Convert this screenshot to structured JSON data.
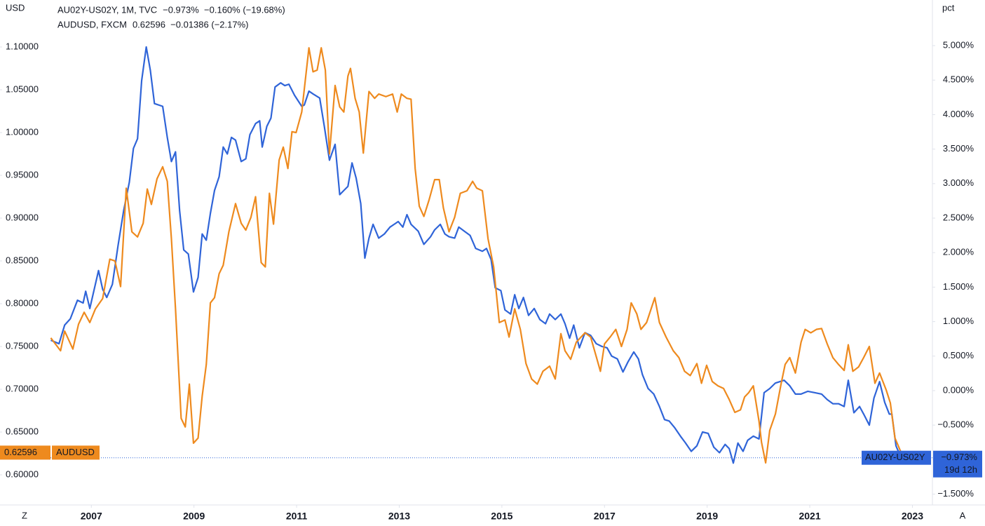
{
  "chart_data": {
    "type": "line",
    "y_label": "USD",
    "y2_label": "pct",
    "legend": [
      {
        "label": "AU02Y-US02Y, 1M, TVC",
        "stats": "−0.973%  −0.160% (−19.68%)"
      },
      {
        "label": "AUDUSD, FXCM",
        "stats": "0.62596  −0.01386 (−2.17%)"
      }
    ],
    "xlim": [
      2005.22,
      2023.39
    ],
    "xticks": [
      2007,
      2009,
      2011,
      2013,
      2015,
      2017,
      2019,
      2021,
      2023
    ],
    "ylim": [
      0.5648,
      1.1549
    ],
    "yticks": [
      {
        "value": 0.6,
        "label": "0.60000"
      },
      {
        "value": 0.65,
        "label": "0.65000"
      },
      {
        "value": 0.7,
        "label": "0.70000"
      },
      {
        "value": 0.75,
        "label": "0.75000"
      },
      {
        "value": 0.8,
        "label": "0.80000"
      },
      {
        "value": 0.85,
        "label": "0.85000"
      },
      {
        "value": 0.9,
        "label": "0.90000"
      },
      {
        "value": 0.95,
        "label": "0.95000"
      },
      {
        "value": 1.0,
        "label": "1.00000"
      },
      {
        "value": 1.05,
        "label": "1.05000"
      },
      {
        "value": 1.1,
        "label": "1.10000"
      }
    ],
    "y2lim": [
      -1.657,
      5.661
    ],
    "y2ticks": [
      {
        "value": -1.5,
        "label": "−1.500%"
      },
      {
        "value": -1.0,
        "label": "−1.000%"
      },
      {
        "value": -0.5,
        "label": "−0.500%"
      },
      {
        "value": 0,
        "label": "0.000%"
      },
      {
        "value": 0.5,
        "label": "0.500%"
      },
      {
        "value": 1.0,
        "label": "1.000%"
      },
      {
        "value": 1.5,
        "label": "1.500%"
      },
      {
        "value": 2.0,
        "label": "2.000%"
      },
      {
        "value": 2.5,
        "label": "2.500%"
      },
      {
        "value": 3.0,
        "label": "3.000%"
      },
      {
        "value": 3.5,
        "label": "3.500%"
      },
      {
        "value": 4.0,
        "label": "4.000%"
      },
      {
        "value": 4.5,
        "label": "4.500%"
      },
      {
        "value": 5.0,
        "label": "5.000%"
      }
    ],
    "grid": false,
    "series": [
      {
        "name": "AU02Y-US02Y",
        "color": "#2f64d8",
        "axis": "y2",
        "x": [
          2006.21,
          2006.37,
          2006.48,
          2006.59,
          2006.73,
          2006.84,
          2006.89,
          2006.97,
          2007.14,
          2007.22,
          2007.3,
          2007.41,
          2007.52,
          2007.63,
          2007.74,
          2007.82,
          2007.9,
          2007.98,
          2008.07,
          2008.15,
          2008.23,
          2008.39,
          2008.48,
          2008.56,
          2008.64,
          2008.72,
          2008.8,
          2008.89,
          2008.99,
          2009.08,
          2009.16,
          2009.24,
          2009.32,
          2009.4,
          2009.49,
          2009.57,
          2009.65,
          2009.73,
          2009.81,
          2009.92,
          2010.01,
          2010.09,
          2010.2,
          2010.28,
          2010.33,
          2010.42,
          2010.5,
          2010.58,
          2010.69,
          2010.77,
          2010.85,
          2010.96,
          2011.1,
          2011.15,
          2011.24,
          2011.32,
          2011.45,
          2011.54,
          2011.64,
          2011.75,
          2011.84,
          2011.92,
          2012.0,
          2012.08,
          2012.16,
          2012.25,
          2012.33,
          2012.41,
          2012.49,
          2012.6,
          2012.71,
          2012.82,
          2012.9,
          2012.98,
          2013.07,
          2013.15,
          2013.23,
          2013.37,
          2013.48,
          2013.61,
          2013.69,
          2013.8,
          2013.89,
          2013.97,
          2014.08,
          2014.16,
          2014.27,
          2014.38,
          2014.49,
          2014.62,
          2014.7,
          2014.79,
          2014.87,
          2014.98,
          2015.06,
          2015.17,
          2015.25,
          2015.33,
          2015.42,
          2015.52,
          2015.63,
          2015.74,
          2015.85,
          2015.93,
          2016.04,
          2016.15,
          2016.23,
          2016.32,
          2016.4,
          2016.51,
          2016.62,
          2016.73,
          2016.84,
          2016.95,
          2017.05,
          2017.14,
          2017.25,
          2017.36,
          2017.46,
          2017.57,
          2017.66,
          2017.74,
          2017.85,
          2017.96,
          2018.07,
          2018.17,
          2018.26,
          2018.37,
          2018.48,
          2018.58,
          2018.69,
          2018.8,
          2018.91,
          2019.02,
          2019.13,
          2019.24,
          2019.35,
          2019.43,
          2019.51,
          2019.6,
          2019.7,
          2019.79,
          2019.9,
          2020.01,
          2020.11,
          2020.22,
          2020.33,
          2020.5,
          2020.61,
          2020.72,
          2020.83,
          2020.96,
          2021.1,
          2021.23,
          2021.34,
          2021.45,
          2021.56,
          2021.67,
          2021.75,
          2021.86,
          2021.97,
          2022.05,
          2022.16,
          2022.25,
          2022.36,
          2022.46,
          2022.55,
          2022.6,
          2022.68,
          2022.78
        ],
        "values": [
          0.73,
          0.68,
          0.95,
          1.04,
          1.31,
          1.27,
          1.44,
          1.19,
          1.74,
          1.47,
          1.35,
          1.54,
          2.1,
          2.61,
          3.02,
          3.51,
          3.65,
          4.49,
          4.98,
          4.64,
          4.16,
          4.12,
          3.67,
          3.32,
          3.46,
          2.61,
          2.04,
          1.98,
          1.43,
          1.64,
          2.27,
          2.18,
          2.57,
          2.9,
          3.1,
          3.53,
          3.43,
          3.67,
          3.63,
          3.32,
          3.36,
          3.71,
          3.87,
          3.91,
          3.53,
          3.83,
          3.95,
          4.4,
          4.46,
          4.42,
          4.44,
          4.28,
          4.12,
          4.14,
          4.34,
          4.3,
          4.24,
          3.83,
          3.34,
          3.57,
          2.84,
          2.9,
          2.96,
          3.3,
          3.08,
          2.71,
          1.92,
          2.21,
          2.41,
          2.21,
          2.27,
          2.37,
          2.41,
          2.45,
          2.37,
          2.55,
          2.41,
          2.31,
          2.12,
          2.23,
          2.33,
          2.41,
          2.27,
          2.23,
          2.21,
          2.37,
          2.31,
          2.25,
          2.06,
          2.02,
          2.06,
          1.9,
          1.49,
          1.45,
          1.17,
          1.11,
          1.39,
          1.19,
          1.35,
          1.09,
          1.19,
          1.03,
          0.97,
          1.11,
          1.03,
          1.11,
          0.97,
          0.76,
          0.95,
          0.62,
          0.84,
          0.8,
          0.68,
          0.64,
          0.62,
          0.5,
          0.46,
          0.27,
          0.42,
          0.56,
          0.46,
          0.23,
          0.03,
          -0.05,
          -0.23,
          -0.42,
          -0.44,
          -0.54,
          -0.66,
          -0.76,
          -0.88,
          -0.8,
          -0.6,
          -0.62,
          -0.82,
          -0.9,
          -0.78,
          -0.84,
          -1.05,
          -0.76,
          -0.88,
          -0.72,
          -0.66,
          -0.7,
          -0.03,
          0.03,
          0.11,
          0.15,
          0.07,
          -0.05,
          -0.05,
          -0.01,
          -0.03,
          -0.05,
          -0.13,
          -0.19,
          -0.19,
          -0.23,
          0.15,
          -0.32,
          -0.23,
          -0.34,
          -0.5,
          -0.11,
          0.13,
          -0.17,
          -0.34,
          -0.34,
          -0.8,
          -0.973
        ]
      },
      {
        "name": "AUDUSD",
        "color": "#ee8a1e",
        "axis": "y",
        "x": [
          2006.21,
          2006.4,
          2006.48,
          2006.64,
          2006.75,
          2006.86,
          2006.97,
          2007.08,
          2007.22,
          2007.36,
          2007.46,
          2007.57,
          2007.68,
          2007.79,
          2007.9,
          2008.01,
          2008.09,
          2008.17,
          2008.28,
          2008.39,
          2008.48,
          2008.56,
          2008.64,
          2008.75,
          2008.83,
          2008.91,
          2008.99,
          2009.08,
          2009.16,
          2009.24,
          2009.32,
          2009.4,
          2009.49,
          2009.57,
          2009.68,
          2009.81,
          2009.92,
          2010.01,
          2010.11,
          2010.2,
          2010.31,
          2010.39,
          2010.47,
          2010.55,
          2010.66,
          2010.74,
          2010.83,
          2010.91,
          2010.99,
          2011.1,
          2011.24,
          2011.32,
          2011.4,
          2011.48,
          2011.56,
          2011.64,
          2011.75,
          2011.84,
          2011.92,
          2012.0,
          2012.05,
          2012.14,
          2012.22,
          2012.3,
          2012.41,
          2012.52,
          2012.6,
          2012.74,
          2012.87,
          2012.96,
          2013.04,
          2013.15,
          2013.23,
          2013.31,
          2013.39,
          2013.48,
          2013.58,
          2013.69,
          2013.78,
          2013.86,
          2013.97,
          2014.08,
          2014.19,
          2014.32,
          2014.43,
          2014.51,
          2014.62,
          2014.73,
          2014.84,
          2014.95,
          2015.06,
          2015.14,
          2015.25,
          2015.36,
          2015.47,
          2015.58,
          2015.69,
          2015.8,
          2015.93,
          2016.04,
          2016.15,
          2016.23,
          2016.34,
          2016.45,
          2016.62,
          2016.73,
          2016.84,
          2016.92,
          2017.0,
          2017.11,
          2017.22,
          2017.33,
          2017.44,
          2017.52,
          2017.63,
          2017.71,
          2017.82,
          2017.98,
          2018.07,
          2018.2,
          2018.34,
          2018.45,
          2018.56,
          2018.67,
          2018.8,
          2018.89,
          2018.99,
          2019.1,
          2019.21,
          2019.32,
          2019.43,
          2019.54,
          2019.65,
          2019.73,
          2019.81,
          2019.9,
          2020.01,
          2020.06,
          2020.14,
          2020.22,
          2020.33,
          2020.44,
          2020.52,
          2020.61,
          2020.72,
          2020.83,
          2020.91,
          2021.02,
          2021.13,
          2021.23,
          2021.34,
          2021.45,
          2021.56,
          2021.67,
          2021.75,
          2021.84,
          2021.95,
          2022.05,
          2022.16,
          2022.27,
          2022.36,
          2022.49,
          2022.57,
          2022.66,
          2022.78
        ],
        "values": [
          0.76,
          0.745,
          0.768,
          0.747,
          0.776,
          0.79,
          0.778,
          0.794,
          0.806,
          0.852,
          0.85,
          0.82,
          0.935,
          0.884,
          0.878,
          0.894,
          0.934,
          0.916,
          0.946,
          0.96,
          0.943,
          0.876,
          0.794,
          0.666,
          0.656,
          0.706,
          0.637,
          0.643,
          0.692,
          0.729,
          0.801,
          0.807,
          0.835,
          0.845,
          0.884,
          0.917,
          0.894,
          0.886,
          0.901,
          0.925,
          0.848,
          0.843,
          0.929,
          0.893,
          0.968,
          0.983,
          0.958,
          1.001,
          1.0,
          1.024,
          1.099,
          1.071,
          1.073,
          1.099,
          1.073,
          0.975,
          1.055,
          1.03,
          1.024,
          1.066,
          1.075,
          1.04,
          1.024,
          0.976,
          1.048,
          1.04,
          1.045,
          1.042,
          1.045,
          1.024,
          1.045,
          1.04,
          1.039,
          0.958,
          0.914,
          0.902,
          0.921,
          0.945,
          0.945,
          0.912,
          0.884,
          0.901,
          0.929,
          0.932,
          0.943,
          0.935,
          0.932,
          0.876,
          0.843,
          0.778,
          0.781,
          0.761,
          0.794,
          0.77,
          0.73,
          0.712,
          0.706,
          0.721,
          0.727,
          0.712,
          0.765,
          0.745,
          0.735,
          0.755,
          0.766,
          0.761,
          0.738,
          0.721,
          0.753,
          0.761,
          0.77,
          0.75,
          0.77,
          0.801,
          0.788,
          0.77,
          0.778,
          0.807,
          0.778,
          0.761,
          0.745,
          0.737,
          0.721,
          0.716,
          0.73,
          0.707,
          0.728,
          0.709,
          0.704,
          0.701,
          0.688,
          0.673,
          0.676,
          0.691,
          0.696,
          0.704,
          0.663,
          0.638,
          0.614,
          0.652,
          0.671,
          0.706,
          0.729,
          0.737,
          0.719,
          0.755,
          0.77,
          0.766,
          0.77,
          0.771,
          0.753,
          0.737,
          0.729,
          0.722,
          0.752,
          0.721,
          0.726,
          0.737,
          0.75,
          0.707,
          0.719,
          0.699,
          0.684,
          0.643,
          0.62596
        ]
      }
    ],
    "left_tag": {
      "value": 0.62596,
      "label": "0.62596"
    },
    "right_tag": {
      "value": -0.973,
      "label": "−0.973%",
      "countdown": "19d 12h"
    },
    "controls": [
      "Z",
      "A"
    ]
  }
}
